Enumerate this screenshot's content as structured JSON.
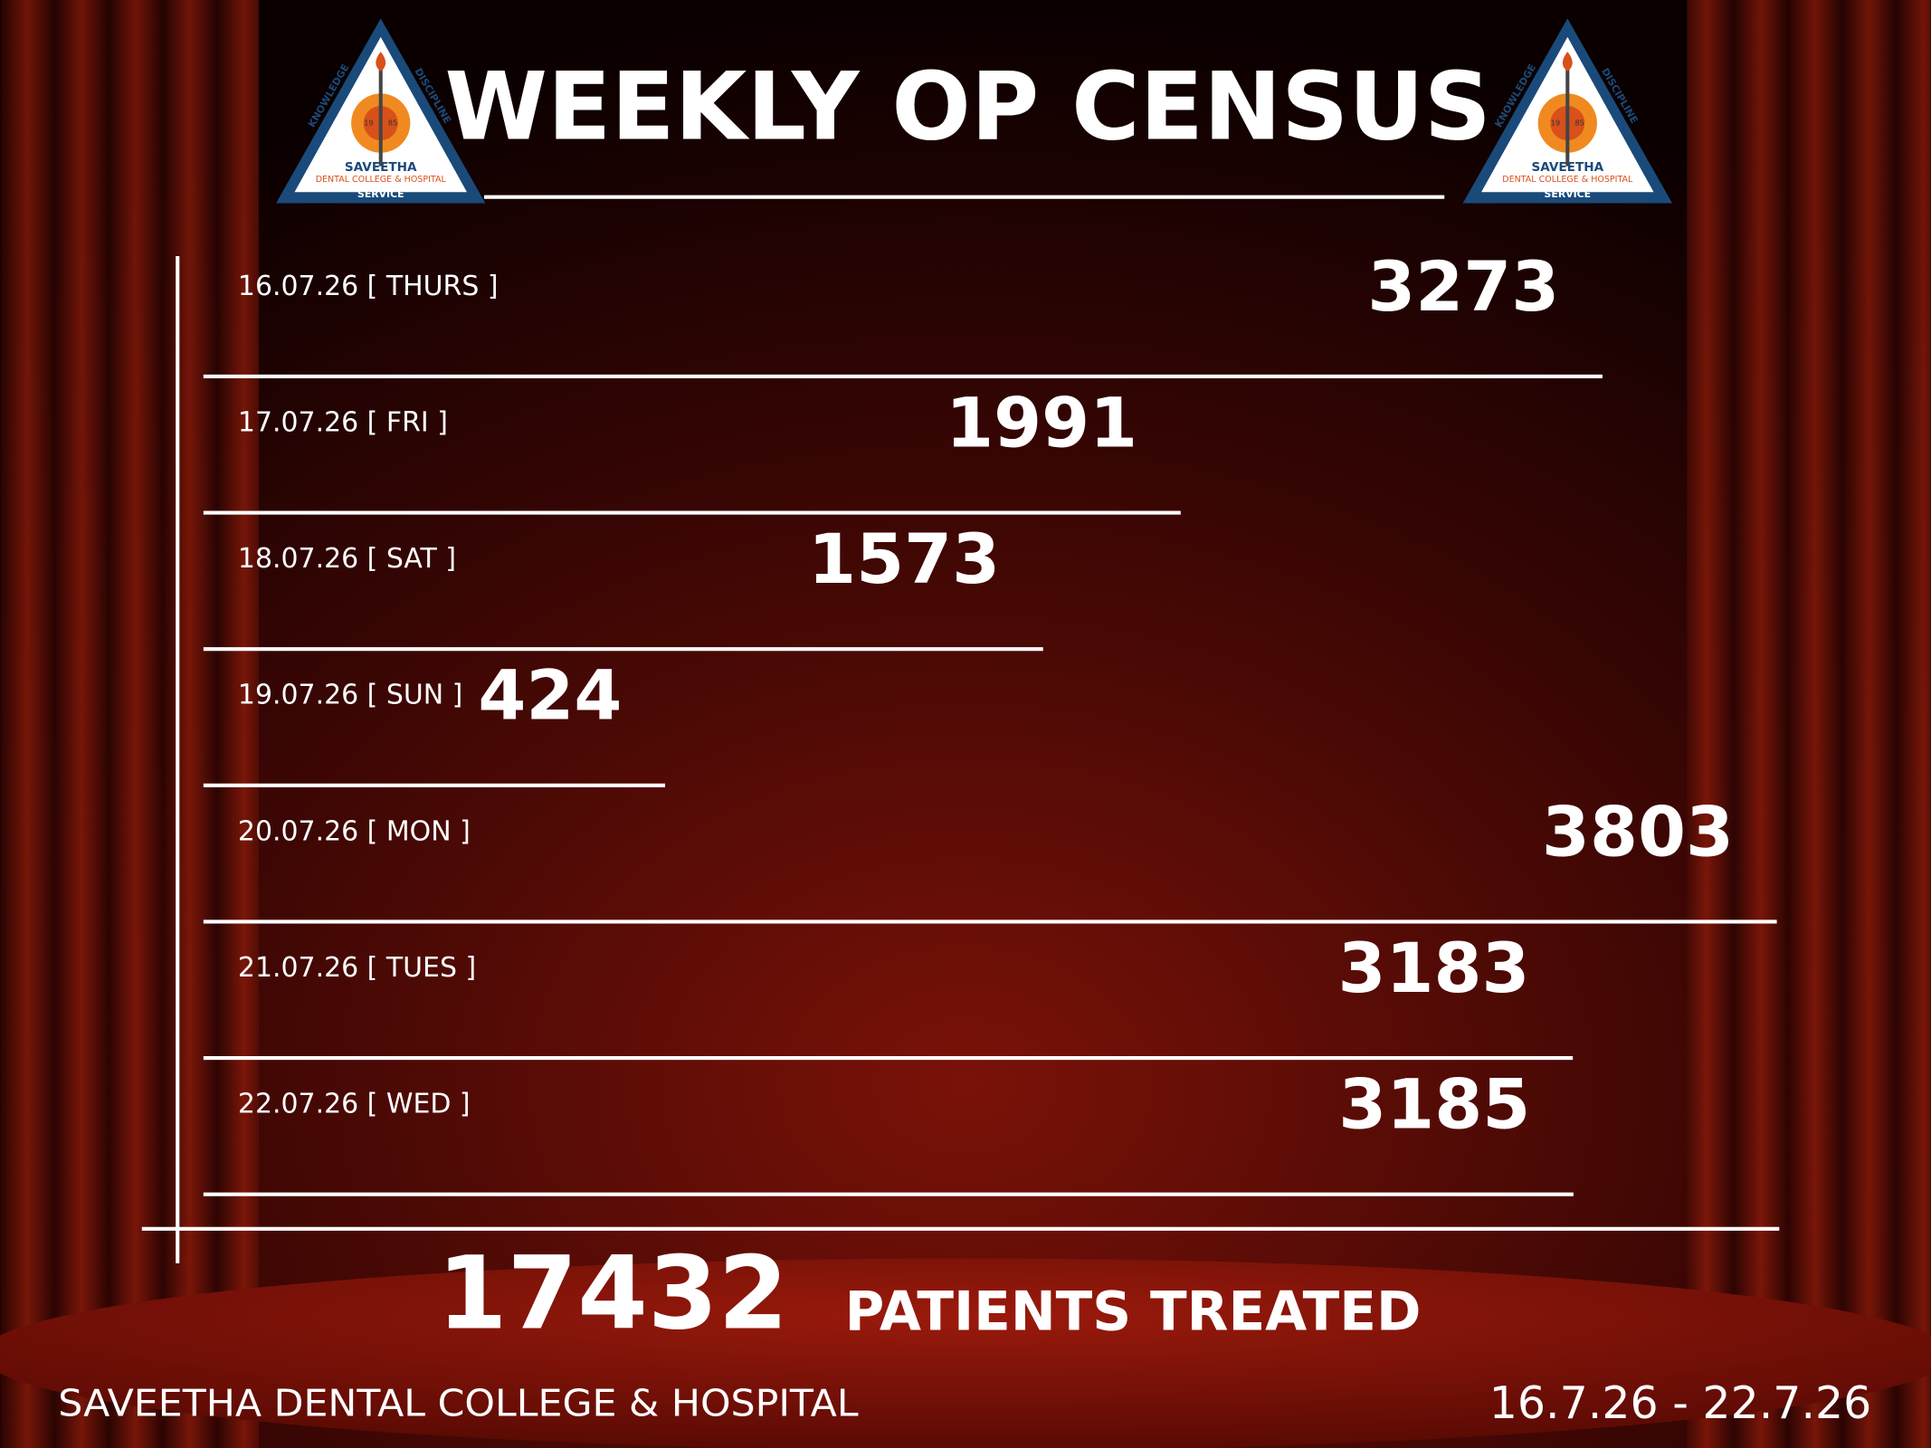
{
  "chart_data": {
    "type": "bar",
    "title": "WEEKLY OP CENSUS",
    "categories": [
      "16.07.26 [ THURS ]",
      "17.07.26 [ FRI ]",
      "18.07.26 [ SAT ]",
      "19.07.26 [ SUN ]",
      "20.07.26 [ MON ]",
      "21.07.26 [ TUES ]",
      "22.07.26 [ WED ]"
    ],
    "values": [
      3273,
      1991,
      1573,
      424,
      3803,
      3183,
      3185
    ],
    "color": "#ffffff",
    "total": 17432,
    "total_label": "PATIENTS TREATED",
    "footer": "SAVEETHA DENTAL COLLEGE & HOSPITAL",
    "date_range": "16.7.26 - 22.7.26",
    "logo": {
      "left_side": "KNOWLEDGE",
      "right_side": "DISCIPLINE",
      "year_left": "19",
      "year_right": "85",
      "name": "SAVEETHA",
      "subtitle": "DENTAL COLLEGE & HOSPITAL",
      "bottom": "SERVICE"
    }
  }
}
